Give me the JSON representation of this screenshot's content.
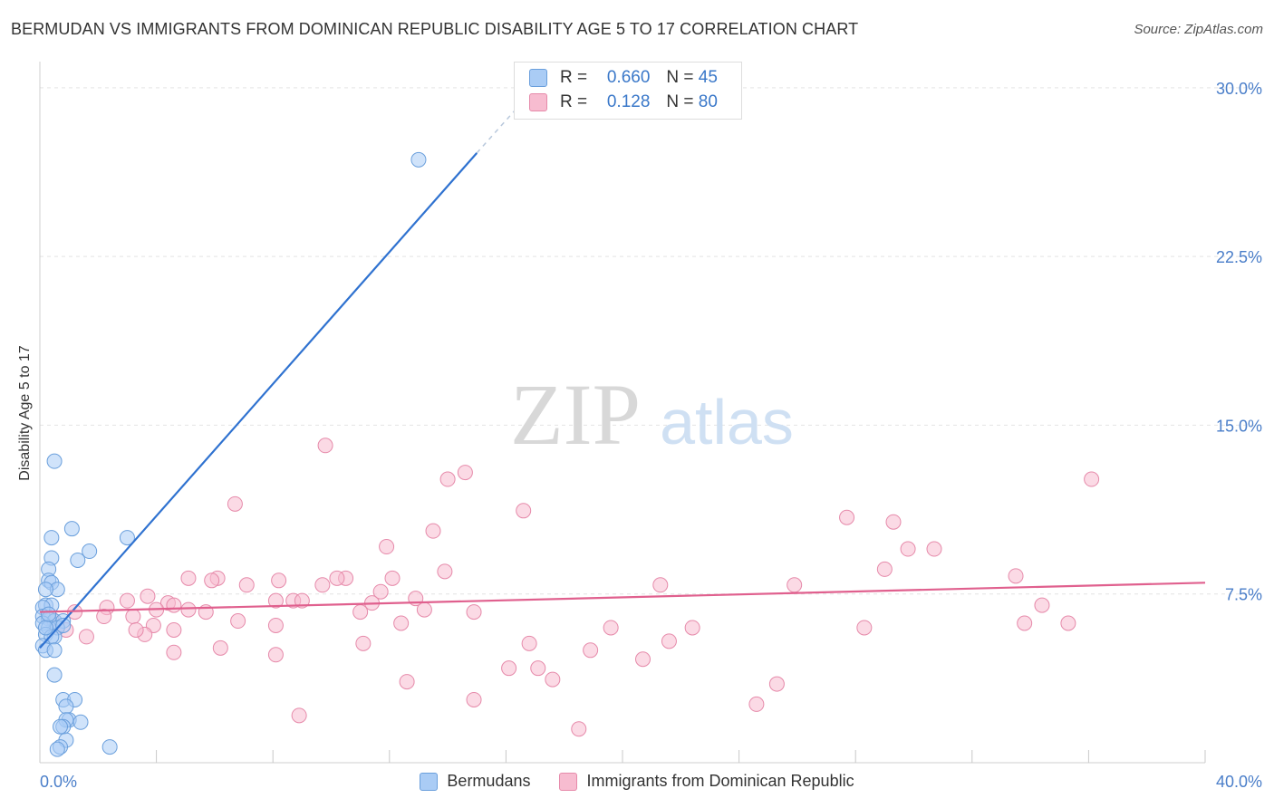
{
  "title": "BERMUDAN VS IMMIGRANTS FROM DOMINICAN REPUBLIC DISABILITY AGE 5 TO 17 CORRELATION CHART",
  "source": "Source: ZipAtlas.com",
  "watermark": {
    "zip": "ZIP",
    "atlas": "atlas"
  },
  "colors": {
    "blue_fill": "#aaccf5",
    "blue_stroke": "#6a9fdc",
    "blue_line": "#2f72d0",
    "pink_fill": "#f7bcd0",
    "pink_stroke": "#e68aaa",
    "pink_line": "#e0608e",
    "tick_label": "#4a7ec9",
    "grid": "#e4e4e4"
  },
  "stats": {
    "rows": [
      {
        "r_label": "R =",
        "r_value": "0.660",
        "n_label": "N =",
        "n_value": "45"
      },
      {
        "r_label": "R =",
        "r_value": "0.128",
        "n_label": "N =",
        "n_value": "80"
      }
    ]
  },
  "legend": {
    "items": [
      "Bermudans",
      "Immigrants from Dominican Republic"
    ]
  },
  "chart_data": {
    "type": "scatter",
    "title": "BERMUDAN VS IMMIGRANTS FROM DOMINICAN REPUBLIC DISABILITY AGE 5 TO 17 CORRELATION CHART",
    "xlabel": "",
    "ylabel": "Disability Age 5 to 17",
    "xlim": [
      0,
      40
    ],
    "ylim": [
      0,
      31
    ],
    "x_tick_labels": [
      "0.0%",
      "40.0%"
    ],
    "y_ticks": [
      7.5,
      15.0,
      22.5,
      30.0
    ],
    "y_tick_labels": [
      "7.5%",
      "15.0%",
      "22.5%",
      "30.0%"
    ],
    "grid": true,
    "legend_position": "bottom",
    "series": [
      {
        "name": "Bermudans",
        "points": [
          [
            13.0,
            26.8
          ],
          [
            0.5,
            13.4
          ],
          [
            1.1,
            10.4
          ],
          [
            0.4,
            10.0
          ],
          [
            3.0,
            10.0
          ],
          [
            1.7,
            9.4
          ],
          [
            0.4,
            9.1
          ],
          [
            1.3,
            9.0
          ],
          [
            0.3,
            8.6
          ],
          [
            0.3,
            8.1
          ],
          [
            0.4,
            8.0
          ],
          [
            0.6,
            7.7
          ],
          [
            0.2,
            7.7
          ],
          [
            0.2,
            7.0
          ],
          [
            0.4,
            7.0
          ],
          [
            0.1,
            6.9
          ],
          [
            0.1,
            6.5
          ],
          [
            0.3,
            6.4
          ],
          [
            0.5,
            6.3
          ],
          [
            0.8,
            6.3
          ],
          [
            0.1,
            6.2
          ],
          [
            0.3,
            6.0
          ],
          [
            0.6,
            6.0
          ],
          [
            0.2,
            5.7
          ],
          [
            0.5,
            5.6
          ],
          [
            0.4,
            5.6
          ],
          [
            0.1,
            5.2
          ],
          [
            0.2,
            5.0
          ],
          [
            0.5,
            5.0
          ],
          [
            0.5,
            3.9
          ],
          [
            0.8,
            2.8
          ],
          [
            1.2,
            2.8
          ],
          [
            0.9,
            2.5
          ],
          [
            1.0,
            1.9
          ],
          [
            0.9,
            1.9
          ],
          [
            1.4,
            1.8
          ],
          [
            0.8,
            1.6
          ],
          [
            0.7,
            1.6
          ],
          [
            0.9,
            1.0
          ],
          [
            0.7,
            0.7
          ],
          [
            0.6,
            0.6
          ],
          [
            2.4,
            0.7
          ],
          [
            0.2,
            6.0
          ],
          [
            0.8,
            6.1
          ],
          [
            0.3,
            6.6
          ]
        ]
      },
      {
        "name": "Immigrants from Dominican Republic",
        "points": [
          [
            9.8,
            14.1
          ],
          [
            14.6,
            12.9
          ],
          [
            14.0,
            12.6
          ],
          [
            36.1,
            12.6
          ],
          [
            6.7,
            11.5
          ],
          [
            16.6,
            11.2
          ],
          [
            27.7,
            10.9
          ],
          [
            29.3,
            10.7
          ],
          [
            13.5,
            10.3
          ],
          [
            11.9,
            9.6
          ],
          [
            29.8,
            9.5
          ],
          [
            30.7,
            9.5
          ],
          [
            13.9,
            8.5
          ],
          [
            29.0,
            8.6
          ],
          [
            33.5,
            8.3
          ],
          [
            5.1,
            8.2
          ],
          [
            6.1,
            8.2
          ],
          [
            8.2,
            8.1
          ],
          [
            9.7,
            7.9
          ],
          [
            10.5,
            8.2
          ],
          [
            10.2,
            8.2
          ],
          [
            12.1,
            8.2
          ],
          [
            5.9,
            8.1
          ],
          [
            7.1,
            7.9
          ],
          [
            21.3,
            7.9
          ],
          [
            25.9,
            7.9
          ],
          [
            11.7,
            7.6
          ],
          [
            3.7,
            7.4
          ],
          [
            12.9,
            7.3
          ],
          [
            8.1,
            7.2
          ],
          [
            8.7,
            7.2
          ],
          [
            9.0,
            7.2
          ],
          [
            3.0,
            7.2
          ],
          [
            4.4,
            7.1
          ],
          [
            4.6,
            7.0
          ],
          [
            11.4,
            7.1
          ],
          [
            2.3,
            6.9
          ],
          [
            4.0,
            6.8
          ],
          [
            5.1,
            6.8
          ],
          [
            5.7,
            6.7
          ],
          [
            11.0,
            6.7
          ],
          [
            13.2,
            6.8
          ],
          [
            14.9,
            6.7
          ],
          [
            34.4,
            7.0
          ],
          [
            1.2,
            6.7
          ],
          [
            2.2,
            6.5
          ],
          [
            3.2,
            6.5
          ],
          [
            6.8,
            6.3
          ],
          [
            12.4,
            6.2
          ],
          [
            3.9,
            6.1
          ],
          [
            8.1,
            6.1
          ],
          [
            19.6,
            6.0
          ],
          [
            22.4,
            6.0
          ],
          [
            28.3,
            6.0
          ],
          [
            33.8,
            6.2
          ],
          [
            35.3,
            6.2
          ],
          [
            0.9,
            5.9
          ],
          [
            3.6,
            5.7
          ],
          [
            4.6,
            5.9
          ],
          [
            1.6,
            5.6
          ],
          [
            3.3,
            5.9
          ],
          [
            11.1,
            5.3
          ],
          [
            16.8,
            5.3
          ],
          [
            21.6,
            5.4
          ],
          [
            6.2,
            5.1
          ],
          [
            18.9,
            5.0
          ],
          [
            20.7,
            4.6
          ],
          [
            4.6,
            4.9
          ],
          [
            8.1,
            4.8
          ],
          [
            16.1,
            4.2
          ],
          [
            17.1,
            4.2
          ],
          [
            12.6,
            3.6
          ],
          [
            17.6,
            3.7
          ],
          [
            25.3,
            3.5
          ],
          [
            14.9,
            2.8
          ],
          [
            24.6,
            2.6
          ],
          [
            8.9,
            2.1
          ],
          [
            18.5,
            1.5
          ],
          [
            0.6,
            6.0
          ],
          [
            0.4,
            6.4
          ]
        ]
      }
    ],
    "trendlines": [
      {
        "series": "Bermudans",
        "from": [
          0.0,
          5.1
        ],
        "to": [
          15.0,
          27.1
        ],
        "dashed_to": [
          17.0,
          30.0
        ]
      },
      {
        "series": "Immigrants from Dominican Republic",
        "from": [
          0.0,
          6.7
        ],
        "to": [
          40.0,
          8.0
        ]
      }
    ]
  }
}
